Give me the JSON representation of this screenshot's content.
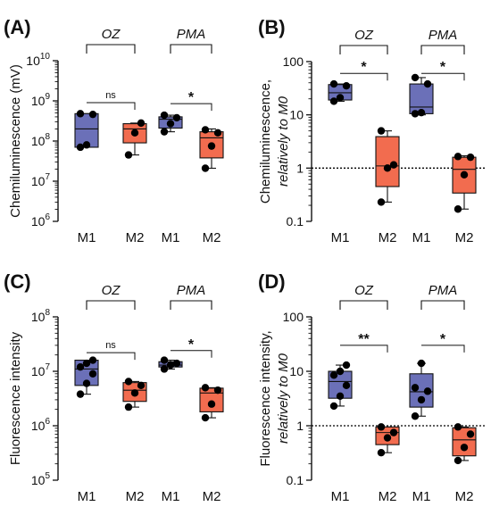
{
  "colors": {
    "m1": "#6b70b8",
    "m2": "#f26c4f",
    "dot": "#000000",
    "ref_line": "#000000"
  },
  "chart_data": [
    {
      "panel": "(A)",
      "type": "box",
      "yscale": "log",
      "ylim": [
        1000000,
        10000000000
      ],
      "yticks": [
        {
          "value": 1000000,
          "base": "10",
          "exp": "6"
        },
        {
          "value": 10000000,
          "base": "10",
          "exp": "7"
        },
        {
          "value": 100000000,
          "base": "10",
          "exp": "8"
        },
        {
          "value": 1000000000,
          "base": "10",
          "exp": "9"
        },
        {
          "value": 10000000000,
          "base": "10",
          "exp": "10"
        }
      ],
      "ylabel": "Chemiluminescence (mV)",
      "ylabel2": "",
      "categories": [
        "M1",
        "M2",
        "M1",
        "M2"
      ],
      "groups": [
        {
          "label": "OZ",
          "from": 0,
          "to": 1
        },
        {
          "label": "PMA",
          "from": 2,
          "to": 3
        }
      ],
      "reference_line": null,
      "series": [
        {
          "category": "M1",
          "group": "OZ",
          "min": 70000000,
          "q1": 70000000,
          "median": 200000000,
          "q3": 480000000,
          "max": 480000000,
          "points": [
            70000000,
            80000000,
            460000000,
            480000000
          ]
        },
        {
          "category": "M2",
          "group": "OZ",
          "min": 45000000,
          "q1": 90000000,
          "median": 200000000,
          "q3": 270000000,
          "max": 280000000,
          "points": [
            45000000,
            160000000,
            280000000
          ]
        },
        {
          "category": "M1",
          "group": "PMA",
          "min": 170000000,
          "q1": 210000000,
          "median": 350000000,
          "q3": 400000000,
          "max": 440000000,
          "points": [
            170000000,
            270000000,
            380000000,
            440000000
          ]
        },
        {
          "category": "M2",
          "group": "PMA",
          "min": 21000000,
          "q1": 38000000,
          "median": 120000000,
          "q3": 170000000,
          "max": 200000000,
          "points": [
            21000000,
            75000000,
            160000000,
            190000000
          ]
        }
      ],
      "comparisons": [
        {
          "from": 0,
          "to": 1,
          "label": "ns",
          "y": 900000000
        },
        {
          "from": 2,
          "to": 3,
          "label": "*",
          "y": 850000000
        }
      ]
    },
    {
      "panel": "(B)",
      "type": "box",
      "yscale": "log",
      "ylim": [
        0.1,
        100
      ],
      "yticks": [
        {
          "value": 0.1,
          "label": "0.1"
        },
        {
          "value": 1,
          "label": "1"
        },
        {
          "value": 10,
          "label": "10"
        },
        {
          "value": 100,
          "label": "100"
        }
      ],
      "ylabel": "Chemiluminescence,",
      "ylabel2": "relatively to M0",
      "categories": [
        "M1",
        "M2",
        "M1",
        "M2"
      ],
      "groups": [
        {
          "label": "OZ",
          "from": 0,
          "to": 1
        },
        {
          "label": "PMA",
          "from": 2,
          "to": 3
        }
      ],
      "reference_line": 1,
      "series": [
        {
          "category": "M1",
          "group": "OZ",
          "min": 18,
          "q1": 19,
          "median": 26,
          "q3": 37,
          "max": 38,
          "points": [
            18,
            21,
            35,
            38
          ]
        },
        {
          "category": "M2",
          "group": "OZ",
          "min": 0.23,
          "q1": 0.45,
          "median": 1.1,
          "q3": 3.9,
          "max": 5,
          "points": [
            0.23,
            1,
            1.15,
            5
          ]
        },
        {
          "category": "M1",
          "group": "PMA",
          "min": 10,
          "q1": 10.5,
          "median": 14,
          "q3": 38,
          "max": 50,
          "points": [
            10.5,
            11,
            38,
            50
          ]
        },
        {
          "category": "M2",
          "group": "PMA",
          "min": 0.17,
          "q1": 0.34,
          "median": 0.95,
          "q3": 1.6,
          "max": 1.7,
          "points": [
            0.17,
            0.75,
            1.6,
            1.65
          ]
        }
      ],
      "comparisons": [
        {
          "from": 0,
          "to": 1,
          "label": "*",
          "y": 60
        },
        {
          "from": 2,
          "to": 3,
          "label": "*",
          "y": 60
        }
      ]
    },
    {
      "panel": "(C)",
      "type": "box",
      "yscale": "log",
      "ylim": [
        100000,
        100000000
      ],
      "yticks": [
        {
          "value": 100000,
          "base": "10",
          "exp": "5"
        },
        {
          "value": 1000000,
          "base": "10",
          "exp": "6"
        },
        {
          "value": 10000000,
          "base": "10",
          "exp": "7"
        },
        {
          "value": 100000000,
          "base": "10",
          "exp": "8"
        }
      ],
      "ylabel": "Fluorescence intensity",
      "ylabel2": "",
      "categories": [
        "M1",
        "M2",
        "M1",
        "M2"
      ],
      "groups": [
        {
          "label": "OZ",
          "from": 0,
          "to": 1
        },
        {
          "label": "PMA",
          "from": 2,
          "to": 3
        }
      ],
      "reference_line": null,
      "series": [
        {
          "category": "M1",
          "group": "OZ",
          "min": 3800000,
          "q1": 5500000,
          "median": 11000000,
          "q3": 16000000,
          "max": 16000000,
          "points": [
            3800000,
            6000000,
            9000000,
            12000000,
            14000000,
            16000000
          ]
        },
        {
          "category": "M2",
          "group": "OZ",
          "min": 2200000,
          "q1": 2800000,
          "median": 4500000,
          "q3": 6200000,
          "max": 6500000,
          "points": [
            2200000,
            4000000,
            5500000,
            6500000
          ]
        },
        {
          "category": "M1",
          "group": "PMA",
          "min": 11000000,
          "q1": 12000000,
          "median": 13000000,
          "q3": 15000000,
          "max": 16000000,
          "points": [
            11000000,
            13000000,
            14000000,
            16000000
          ]
        },
        {
          "category": "M2",
          "group": "PMA",
          "min": 1400000,
          "q1": 1800000,
          "median": 4000000,
          "q3": 4900000,
          "max": 5000000,
          "points": [
            1400000,
            2500000,
            4500000,
            5000000
          ]
        }
      ],
      "comparisons": [
        {
          "from": 0,
          "to": 1,
          "label": "ns",
          "y": 22000000
        },
        {
          "from": 2,
          "to": 3,
          "label": "*",
          "y": 24000000
        }
      ]
    },
    {
      "panel": "(D)",
      "type": "box",
      "yscale": "log",
      "ylim": [
        0.1,
        100
      ],
      "yticks": [
        {
          "value": 0.1,
          "label": "0.1"
        },
        {
          "value": 1,
          "label": "1"
        },
        {
          "value": 10,
          "label": "10"
        },
        {
          "value": 100,
          "label": "100"
        }
      ],
      "ylabel": "Fluorescence intensity,",
      "ylabel2": "relatively to M0",
      "categories": [
        "M1",
        "M2",
        "M1",
        "M2"
      ],
      "groups": [
        {
          "label": "OZ",
          "from": 0,
          "to": 1
        },
        {
          "label": "PMA",
          "from": 2,
          "to": 3
        }
      ],
      "reference_line": 1,
      "series": [
        {
          "category": "M1",
          "group": "OZ",
          "min": 2.3,
          "q1": 3.2,
          "median": 6.5,
          "q3": 10,
          "max": 13,
          "points": [
            2.3,
            3.5,
            5.5,
            8.5,
            10,
            13
          ]
        },
        {
          "category": "M2",
          "group": "OZ",
          "min": 0.32,
          "q1": 0.45,
          "median": 0.75,
          "q3": 0.95,
          "max": 0.95,
          "points": [
            0.32,
            0.6,
            0.75,
            0.95
          ]
        },
        {
          "category": "M1",
          "group": "PMA",
          "min": 1.5,
          "q1": 2.2,
          "median": 4.2,
          "q3": 9,
          "max": 14,
          "points": [
            1.5,
            3,
            4.3,
            5,
            14
          ]
        },
        {
          "category": "M2",
          "group": "PMA",
          "min": 0.23,
          "q1": 0.28,
          "median": 0.55,
          "q3": 0.92,
          "max": 0.95,
          "points": [
            0.23,
            0.4,
            0.7,
            0.95
          ]
        }
      ],
      "comparisons": [
        {
          "from": 0,
          "to": 1,
          "label": "**",
          "y": 30
        },
        {
          "from": 2,
          "to": 3,
          "label": "*",
          "y": 30
        }
      ]
    }
  ]
}
